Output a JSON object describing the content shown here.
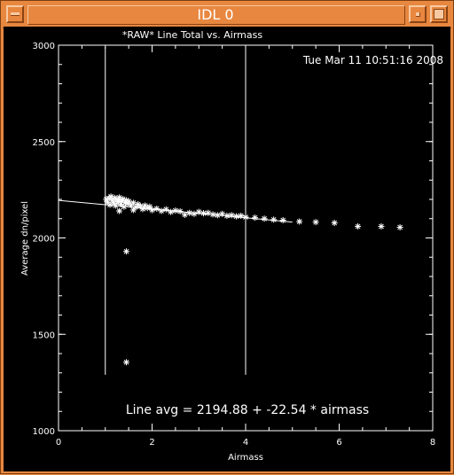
{
  "window": {
    "title": "IDL 0"
  },
  "plot": {
    "title": "*RAW* Line Total vs. Airmass",
    "timestamp": "Tue Mar 11 10:51:16 2008",
    "fit_label": "Line avg = 2194.88 + -22.54 * airmass",
    "foreground": "#ffffff",
    "background": "#000000"
  },
  "chart_data": {
    "type": "scatter",
    "title": "*RAW* Line Total vs. Airmass",
    "xlabel": "Airmass",
    "ylabel": "Average dn/pixel",
    "xlim": [
      0,
      8
    ],
    "ylim": [
      1000,
      3000
    ],
    "x_ticks": [
      "0",
      "2",
      "4",
      "6",
      "8"
    ],
    "y_ticks": [
      "1000",
      "1500",
      "2000",
      "2500",
      "3000"
    ],
    "grid": false,
    "legend": "none",
    "series": [
      {
        "marker": "asterisk",
        "points": [
          [
            1.02,
            2200
          ],
          [
            1.05,
            2185
          ],
          [
            1.08,
            2205
          ],
          [
            1.1,
            2172
          ],
          [
            1.12,
            2215
          ],
          [
            1.15,
            2195
          ],
          [
            1.18,
            2182
          ],
          [
            1.2,
            2208
          ],
          [
            1.22,
            2168
          ],
          [
            1.25,
            2198
          ],
          [
            1.28,
            2188
          ],
          [
            1.3,
            2210
          ],
          [
            1.33,
            2175
          ],
          [
            1.35,
            2192
          ],
          [
            1.38,
            2202
          ],
          [
            1.4,
            2162
          ],
          [
            1.43,
            2185
          ],
          [
            1.45,
            2195
          ],
          [
            1.48,
            2178
          ],
          [
            1.5,
            2190
          ],
          [
            1.55,
            2170
          ],
          [
            1.6,
            2182
          ],
          [
            1.65,
            2160
          ],
          [
            1.7,
            2175
          ],
          [
            1.75,
            2165
          ],
          [
            1.8,
            2150
          ],
          [
            1.85,
            2168
          ],
          [
            1.9,
            2155
          ],
          [
            1.95,
            2162
          ],
          [
            2.0,
            2145
          ],
          [
            2.1,
            2152
          ],
          [
            2.2,
            2140
          ],
          [
            2.3,
            2148
          ],
          [
            2.4,
            2135
          ],
          [
            2.5,
            2142
          ],
          [
            2.6,
            2138
          ],
          [
            2.7,
            2120
          ],
          [
            2.8,
            2130
          ],
          [
            2.9,
            2125
          ],
          [
            3.0,
            2135
          ],
          [
            3.1,
            2128
          ],
          [
            3.2,
            2130
          ],
          [
            3.3,
            2122
          ],
          [
            3.4,
            2118
          ],
          [
            3.5,
            2125
          ],
          [
            3.6,
            2115
          ],
          [
            3.7,
            2118
          ],
          [
            3.8,
            2112
          ],
          [
            3.9,
            2115
          ],
          [
            4.0,
            2108
          ],
          [
            4.2,
            2105
          ],
          [
            4.4,
            2100
          ],
          [
            4.6,
            2095
          ],
          [
            4.8,
            2092
          ],
          [
            5.15,
            2085
          ],
          [
            5.5,
            2082
          ],
          [
            5.9,
            2078
          ],
          [
            6.4,
            2060
          ],
          [
            6.9,
            2060
          ],
          [
            7.3,
            2055
          ],
          [
            1.45,
            1930
          ],
          [
            1.45,
            1355
          ],
          [
            1.3,
            2140
          ],
          [
            1.6,
            2145
          ]
        ]
      }
    ],
    "fit_line": {
      "intercept": 2194.88,
      "slope": -22.54,
      "x_range": [
        0,
        5
      ]
    },
    "vertical_markers": [
      1.0,
      4.0
    ]
  }
}
